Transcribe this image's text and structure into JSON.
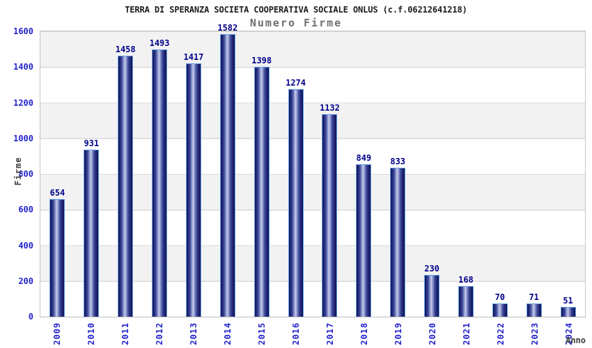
{
  "chart_data": {
    "type": "bar",
    "title": "TERRA DI SPERANZA SOCIETA COOPERATIVA SOCIALE ONLUS (c.f.06212641218)",
    "subtitle": "Numero Firme",
    "categories": [
      "2009",
      "2010",
      "2011",
      "2012",
      "2013",
      "2014",
      "2015",
      "2016",
      "2017",
      "2018",
      "2019",
      "2020",
      "2021",
      "2022",
      "2023",
      "2024"
    ],
    "values": [
      654,
      931,
      1458,
      1493,
      1417,
      1582,
      1398,
      1274,
      1132,
      849,
      833,
      230,
      168,
      70,
      71,
      51
    ],
    "xlabel": "Anno",
    "ylabel": "Firme",
    "ylim": [
      0,
      1600
    ],
    "yticks": [
      0,
      200,
      400,
      600,
      800,
      1000,
      1200,
      1400,
      1600
    ],
    "grid": "horizontal gridlines every 200, alternating gray/white bands",
    "legend_position": "none"
  },
  "colors": {
    "bar_edge_dark": "#13164f",
    "bar_dark": "#1d2372",
    "bar_mid": "#3a4596",
    "bar_light_mid": "#8a93cc",
    "bar_highlight": "#c7cde9",
    "bar_border": "#64a0e8",
    "value_label": "#00008c",
    "tick_label": "#2424cf",
    "band_gray": "#f2f2f2",
    "gridline": "#dadada",
    "title_color": "#1b1b1b",
    "subtitle_color": "#6e6e6e",
    "axis_title_color": "#3c3c3c"
  }
}
